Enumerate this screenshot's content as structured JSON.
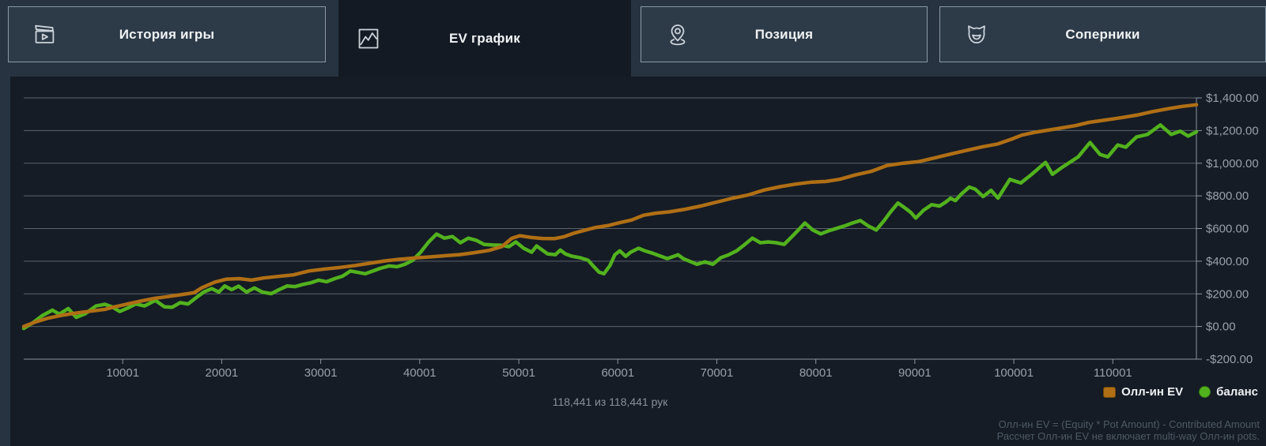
{
  "tabs": [
    {
      "label": "История игры",
      "icon": "game-history-clapperboard-icon",
      "active": false
    },
    {
      "label": "EV график",
      "icon": "ev-graph-icon",
      "active": true
    },
    {
      "label": "Позиция",
      "icon": "position-pin-icon",
      "active": false
    },
    {
      "label": "Соперники",
      "icon": "opponents-cat-icon",
      "active": false
    }
  ],
  "chart_data": {
    "type": "line",
    "title": "",
    "xlabel": "",
    "ylabel": "",
    "xlim": [
      1,
      118441
    ],
    "ylim": [
      -200,
      1400
    ],
    "grid": true,
    "legend_position": "bottom-right",
    "x_ticks": [
      10001,
      20001,
      30001,
      40001,
      50001,
      60001,
      70001,
      80001,
      90001,
      100001,
      110001
    ],
    "y_ticks": [
      {
        "value": 1400,
        "label": "$1,400.00"
      },
      {
        "value": 1200,
        "label": "$1,200.00"
      },
      {
        "value": 1000,
        "label": "$1,000.00"
      },
      {
        "value": 800,
        "label": "$800.00"
      },
      {
        "value": 600,
        "label": "$600.00"
      },
      {
        "value": 400,
        "label": "$400.00"
      },
      {
        "value": 200,
        "label": "$200.00"
      },
      {
        "value": 0,
        "label": "$0.00"
      },
      {
        "value": -200,
        "label": "-$200.00"
      }
    ],
    "series": [
      {
        "name": "Олл-ин EV",
        "color": "#b06f15",
        "points": [
          [
            1,
            0
          ],
          [
            1200,
            28
          ],
          [
            2500,
            52
          ],
          [
            4000,
            70
          ],
          [
            5500,
            84
          ],
          [
            7000,
            96
          ],
          [
            8200,
            105
          ],
          [
            9000,
            118
          ],
          [
            9800,
            128
          ],
          [
            10800,
            142
          ],
          [
            12000,
            158
          ],
          [
            13200,
            172
          ],
          [
            14500,
            183
          ],
          [
            16000,
            196
          ],
          [
            17200,
            207
          ],
          [
            18000,
            238
          ],
          [
            19300,
            272
          ],
          [
            20500,
            290
          ],
          [
            21800,
            293
          ],
          [
            23000,
            284
          ],
          [
            24200,
            297
          ],
          [
            25600,
            306
          ],
          [
            27200,
            316
          ],
          [
            28800,
            340
          ],
          [
            30400,
            352
          ],
          [
            32000,
            362
          ],
          [
            33500,
            374
          ],
          [
            35000,
            388
          ],
          [
            36500,
            402
          ],
          [
            38000,
            412
          ],
          [
            39500,
            420
          ],
          [
            41000,
            426
          ],
          [
            42500,
            433
          ],
          [
            44000,
            440
          ],
          [
            45500,
            452
          ],
          [
            47000,
            466
          ],
          [
            48300,
            490
          ],
          [
            49300,
            540
          ],
          [
            50100,
            556
          ],
          [
            51200,
            546
          ],
          [
            52400,
            539
          ],
          [
            53600,
            538
          ],
          [
            54600,
            550
          ],
          [
            55600,
            572
          ],
          [
            56700,
            590
          ],
          [
            57800,
            607
          ],
          [
            59000,
            618
          ],
          [
            60200,
            636
          ],
          [
            61400,
            652
          ],
          [
            62600,
            681
          ],
          [
            63800,
            694
          ],
          [
            65200,
            702
          ],
          [
            66800,
            718
          ],
          [
            68400,
            738
          ],
          [
            70000,
            762
          ],
          [
            71600,
            786
          ],
          [
            73200,
            806
          ],
          [
            74800,
            836
          ],
          [
            76400,
            856
          ],
          [
            78000,
            872
          ],
          [
            79600,
            884
          ],
          [
            81000,
            888
          ],
          [
            82400,
            901
          ],
          [
            84000,
            928
          ],
          [
            85600,
            950
          ],
          [
            87200,
            986
          ],
          [
            88800,
            1000
          ],
          [
            90400,
            1010
          ],
          [
            92000,
            1032
          ],
          [
            93600,
            1056
          ],
          [
            95200,
            1078
          ],
          [
            96800,
            1100
          ],
          [
            98400,
            1118
          ],
          [
            99800,
            1148
          ],
          [
            100800,
            1172
          ],
          [
            102000,
            1188
          ],
          [
            103400,
            1202
          ],
          [
            104800,
            1216
          ],
          [
            106200,
            1230
          ],
          [
            107600,
            1250
          ],
          [
            109200,
            1264
          ],
          [
            110800,
            1278
          ],
          [
            112400,
            1294
          ],
          [
            114000,
            1316
          ],
          [
            115600,
            1334
          ],
          [
            117000,
            1348
          ],
          [
            118441,
            1358
          ]
        ]
      },
      {
        "name": "баланс",
        "color": "#52b21e",
        "points": [
          [
            1,
            -12
          ],
          [
            900,
            22
          ],
          [
            1900,
            68
          ],
          [
            2900,
            100
          ],
          [
            3600,
            76
          ],
          [
            4500,
            110
          ],
          [
            5300,
            56
          ],
          [
            6200,
            78
          ],
          [
            7300,
            126
          ],
          [
            8200,
            136
          ],
          [
            8900,
            121
          ],
          [
            9700,
            92
          ],
          [
            10500,
            113
          ],
          [
            11300,
            138
          ],
          [
            12200,
            126
          ],
          [
            13300,
            160
          ],
          [
            14200,
            121
          ],
          [
            15000,
            118
          ],
          [
            15800,
            146
          ],
          [
            16600,
            138
          ],
          [
            17400,
            176
          ],
          [
            18200,
            212
          ],
          [
            19000,
            232
          ],
          [
            19700,
            211
          ],
          [
            20300,
            248
          ],
          [
            21000,
            226
          ],
          [
            21700,
            247
          ],
          [
            22500,
            211
          ],
          [
            23300,
            236
          ],
          [
            24100,
            211
          ],
          [
            25000,
            201
          ],
          [
            25800,
            226
          ],
          [
            26600,
            248
          ],
          [
            27400,
            244
          ],
          [
            28200,
            258
          ],
          [
            29000,
            268
          ],
          [
            29800,
            284
          ],
          [
            30600,
            274
          ],
          [
            31400,
            293
          ],
          [
            32200,
            308
          ],
          [
            33000,
            340
          ],
          [
            34500,
            323
          ],
          [
            36000,
            356
          ],
          [
            36900,
            371
          ],
          [
            37700,
            366
          ],
          [
            38500,
            381
          ],
          [
            39300,
            406
          ],
          [
            40100,
            456
          ],
          [
            40900,
            518
          ],
          [
            41700,
            566
          ],
          [
            42500,
            541
          ],
          [
            43300,
            551
          ],
          [
            44100,
            513
          ],
          [
            44900,
            541
          ],
          [
            45700,
            528
          ],
          [
            46500,
            503
          ],
          [
            47400,
            499
          ],
          [
            48200,
            498
          ],
          [
            49000,
            489
          ],
          [
            49700,
            518
          ],
          [
            50500,
            479
          ],
          [
            51300,
            455
          ],
          [
            51800,
            493
          ],
          [
            52900,
            445
          ],
          [
            53700,
            440
          ],
          [
            54200,
            468
          ],
          [
            54700,
            445
          ],
          [
            55400,
            430
          ],
          [
            56200,
            421
          ],
          [
            57000,
            406
          ],
          [
            57500,
            372
          ],
          [
            58100,
            333
          ],
          [
            58600,
            323
          ],
          [
            59200,
            372
          ],
          [
            59700,
            439
          ],
          [
            60200,
            463
          ],
          [
            60800,
            430
          ],
          [
            61300,
            455
          ],
          [
            62100,
            479
          ],
          [
            62700,
            464
          ],
          [
            63400,
            451
          ],
          [
            65000,
            416
          ],
          [
            66100,
            439
          ],
          [
            66600,
            416
          ],
          [
            68000,
            381
          ],
          [
            68800,
            396
          ],
          [
            69600,
            381
          ],
          [
            70400,
            421
          ],
          [
            71200,
            439
          ],
          [
            72000,
            463
          ],
          [
            72800,
            501
          ],
          [
            73600,
            541
          ],
          [
            74400,
            513
          ],
          [
            75200,
            518
          ],
          [
            76000,
            513
          ],
          [
            76800,
            503
          ],
          [
            77600,
            551
          ],
          [
            78400,
            601
          ],
          [
            78900,
            634
          ],
          [
            79700,
            591
          ],
          [
            80500,
            567
          ],
          [
            81300,
            586
          ],
          [
            82100,
            601
          ],
          [
            82900,
            616
          ],
          [
            83700,
            634
          ],
          [
            84500,
            649
          ],
          [
            85300,
            616
          ],
          [
            86100,
            591
          ],
          [
            86900,
            649
          ],
          [
            87500,
            698
          ],
          [
            88300,
            756
          ],
          [
            89100,
            722
          ],
          [
            89600,
            698
          ],
          [
            90100,
            664
          ],
          [
            90900,
            713
          ],
          [
            91700,
            746
          ],
          [
            92500,
            738
          ],
          [
            93100,
            761
          ],
          [
            93600,
            785
          ],
          [
            94100,
            771
          ],
          [
            94700,
            811
          ],
          [
            95500,
            854
          ],
          [
            96100,
            841
          ],
          [
            96900,
            796
          ],
          [
            97700,
            834
          ],
          [
            98400,
            786
          ],
          [
            99600,
            901
          ],
          [
            100700,
            879
          ],
          [
            101700,
            927
          ],
          [
            103200,
            1005
          ],
          [
            103900,
            932
          ],
          [
            104900,
            976
          ],
          [
            106500,
            1039
          ],
          [
            107700,
            1127
          ],
          [
            108700,
            1054
          ],
          [
            109500,
            1039
          ],
          [
            110500,
            1112
          ],
          [
            111300,
            1098
          ],
          [
            112400,
            1161
          ],
          [
            113500,
            1176
          ],
          [
            114800,
            1234
          ],
          [
            115900,
            1176
          ],
          [
            116800,
            1196
          ],
          [
            117600,
            1166
          ],
          [
            118441,
            1192
          ]
        ]
      }
    ]
  },
  "legend": [
    {
      "label": "Олл-ин EV",
      "color": "#b06f15",
      "shape": "square"
    },
    {
      "label": "баланс",
      "color": "#52b21e",
      "shape": "circle"
    }
  ],
  "info": {
    "hands_text": "118,441 из 118,441 рук"
  },
  "footer": {
    "line1": "Олл-ин EV = (Equity * Pot Amount) - Contributed Amount",
    "line2": "Рассчет Олл-ин EV не включает multi-way Олл-ин pots."
  },
  "colors": {
    "page_background": "#273340",
    "panel_background": "#151c25",
    "active_tab_background": "#131a23",
    "tab_background": "#2d3a48",
    "tab_border": "#8a99a8",
    "grid_line": "#5b636d",
    "axis_line": "#8d959e",
    "axis_label": "#99a0a8",
    "ev_line": "#b06f15",
    "balance_line": "#52b21e"
  }
}
